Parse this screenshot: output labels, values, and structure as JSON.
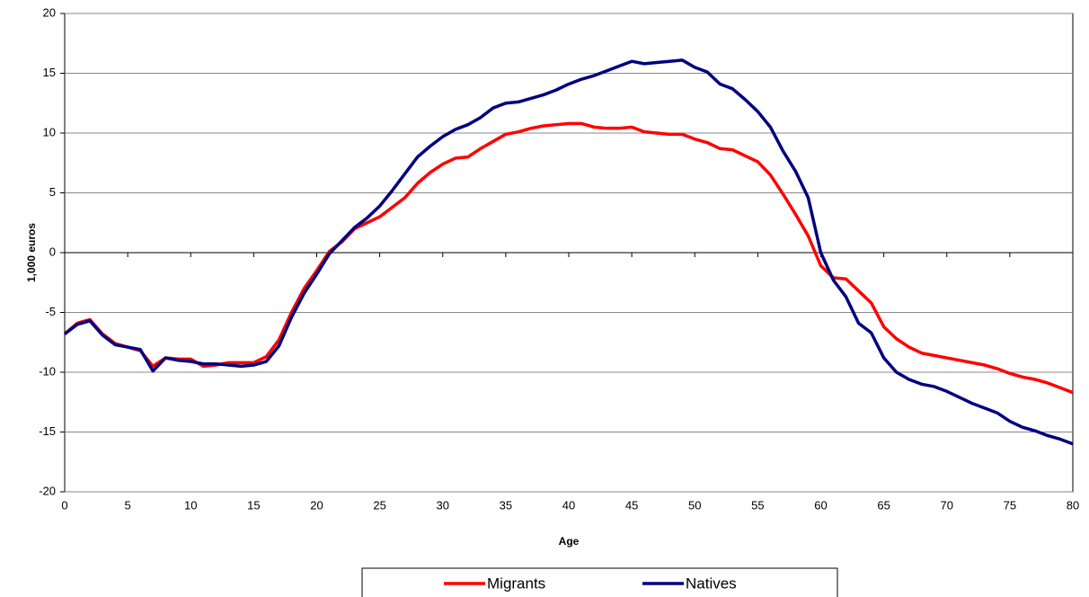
{
  "chart_data": {
    "type": "line",
    "xlabel": "Age",
    "ylabel": "1,000 euros",
    "x": [
      0,
      1,
      2,
      3,
      4,
      5,
      6,
      7,
      8,
      9,
      10,
      11,
      12,
      13,
      14,
      15,
      16,
      17,
      18,
      19,
      20,
      21,
      22,
      23,
      24,
      25,
      26,
      27,
      28,
      29,
      30,
      31,
      32,
      33,
      34,
      35,
      36,
      37,
      38,
      39,
      40,
      41,
      42,
      43,
      44,
      45,
      46,
      47,
      48,
      49,
      50,
      51,
      52,
      53,
      54,
      55,
      56,
      57,
      58,
      59,
      60,
      61,
      62,
      63,
      64,
      65,
      66,
      67,
      68,
      69,
      70,
      71,
      72,
      73,
      74,
      75,
      76,
      77,
      78,
      79,
      80
    ],
    "series": [
      {
        "name": "Migrants",
        "color": "#ff0000",
        "values": [
          -6.8,
          -5.9,
          -5.6,
          -6.8,
          -7.6,
          -7.9,
          -8.2,
          -9.5,
          -8.8,
          -8.9,
          -8.9,
          -9.5,
          -9.4,
          -9.2,
          -9.2,
          -9.2,
          -8.7,
          -7.3,
          -5.0,
          -3.0,
          -1.5,
          0.1,
          0.9,
          2.0,
          2.5,
          3.0,
          3.8,
          4.6,
          5.8,
          6.7,
          7.4,
          7.9,
          8.0,
          8.7,
          9.3,
          9.9,
          10.1,
          10.4,
          10.6,
          10.7,
          10.8,
          10.8,
          10.5,
          10.4,
          10.4,
          10.5,
          10.1,
          10.0,
          9.9,
          9.9,
          9.5,
          9.2,
          8.7,
          8.6,
          8.1,
          7.6,
          6.5,
          4.9,
          3.2,
          1.4,
          -1.1,
          -2.1,
          -2.2,
          -3.2,
          -4.2,
          -6.2,
          -7.2,
          -7.9,
          -8.4,
          -8.6,
          -8.8,
          -9.0,
          -9.2,
          -9.4,
          -9.7,
          -10.1,
          -10.4,
          -10.6,
          -10.9,
          -11.3,
          -11.7
        ]
      },
      {
        "name": "Natives",
        "color": "#000080",
        "values": [
          -6.8,
          -6.0,
          -5.7,
          -6.9,
          -7.7,
          -7.9,
          -8.1,
          -9.9,
          -8.8,
          -9.0,
          -9.1,
          -9.3,
          -9.3,
          -9.4,
          -9.5,
          -9.4,
          -9.1,
          -7.8,
          -5.4,
          -3.4,
          -1.8,
          -0.1,
          1.0,
          2.1,
          2.9,
          3.9,
          5.2,
          6.6,
          8.0,
          8.9,
          9.7,
          10.3,
          10.7,
          11.3,
          12.1,
          12.5,
          12.6,
          12.9,
          13.2,
          13.6,
          14.1,
          14.5,
          14.8,
          15.2,
          15.6,
          16.0,
          15.8,
          15.9,
          16.0,
          16.1,
          15.5,
          15.1,
          14.1,
          13.7,
          12.8,
          11.8,
          10.5,
          8.5,
          6.8,
          4.6,
          0.0,
          -2.3,
          -3.7,
          -5.9,
          -6.7,
          -8.8,
          -10.0,
          -10.6,
          -11.0,
          -11.2,
          -11.6,
          -12.1,
          -12.6,
          -13.0,
          -13.4,
          -14.1,
          -14.6,
          -14.9,
          -15.3,
          -15.6,
          -16.0
        ]
      }
    ],
    "xlim": [
      0,
      80
    ],
    "xticks": [
      0,
      5,
      10,
      15,
      20,
      25,
      30,
      35,
      40,
      45,
      50,
      55,
      60,
      65,
      70,
      75,
      80
    ],
    "ylim": [
      -20,
      20
    ],
    "yticks": [
      -20,
      -15,
      -10,
      -5,
      0,
      5,
      10,
      15,
      20
    ],
    "grid": true,
    "legend": "bottom"
  }
}
